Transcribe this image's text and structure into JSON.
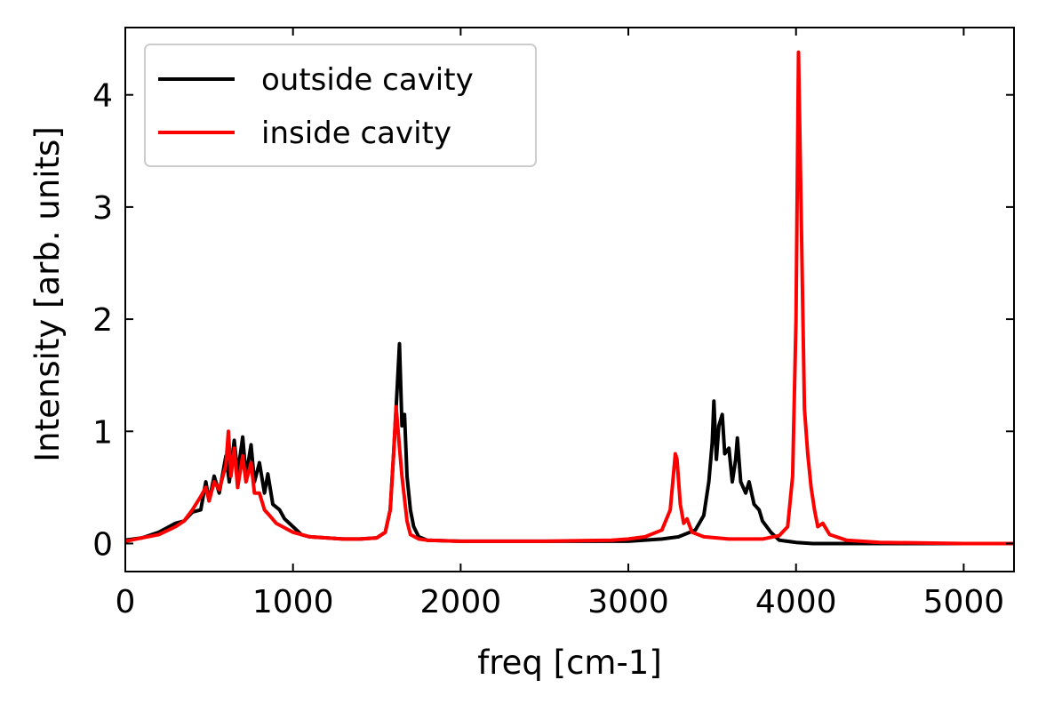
{
  "chart_data": {
    "type": "line",
    "title": "",
    "xlabel": "freq [cm-1]",
    "ylabel": "Intensity [arb. units]",
    "xlim": [
      0,
      5300
    ],
    "ylim": [
      -0.25,
      4.6
    ],
    "xticks": [
      0,
      1000,
      2000,
      3000,
      4000,
      5000
    ],
    "xtick_labels": [
      "0",
      "1000",
      "2000",
      "3000",
      "4000",
      "5000"
    ],
    "yticks": [
      0,
      1,
      2,
      3,
      4
    ],
    "ytick_labels": [
      "0",
      "1",
      "2",
      "3",
      "4"
    ],
    "grid": false,
    "legend_placement": "top-left",
    "series": [
      {
        "name": "outside cavity",
        "color": "#000000",
        "points": [
          [
            0,
            0.03
          ],
          [
            100,
            0.05
          ],
          [
            200,
            0.1
          ],
          [
            300,
            0.18
          ],
          [
            350,
            0.2
          ],
          [
            400,
            0.28
          ],
          [
            450,
            0.3
          ],
          [
            480,
            0.55
          ],
          [
            500,
            0.38
          ],
          [
            530,
            0.6
          ],
          [
            560,
            0.45
          ],
          [
            600,
            0.78
          ],
          [
            620,
            0.55
          ],
          [
            650,
            0.92
          ],
          [
            670,
            0.62
          ],
          [
            700,
            0.95
          ],
          [
            720,
            0.6
          ],
          [
            750,
            0.88
          ],
          [
            770,
            0.55
          ],
          [
            800,
            0.72
          ],
          [
            830,
            0.45
          ],
          [
            850,
            0.62
          ],
          [
            880,
            0.35
          ],
          [
            920,
            0.3
          ],
          [
            950,
            0.22
          ],
          [
            1000,
            0.15
          ],
          [
            1050,
            0.08
          ],
          [
            1100,
            0.06
          ],
          [
            1200,
            0.05
          ],
          [
            1300,
            0.04
          ],
          [
            1400,
            0.04
          ],
          [
            1500,
            0.05
          ],
          [
            1550,
            0.1
          ],
          [
            1580,
            0.3
          ],
          [
            1600,
            0.8
          ],
          [
            1620,
            1.35
          ],
          [
            1635,
            1.78
          ],
          [
            1650,
            1.05
          ],
          [
            1665,
            1.15
          ],
          [
            1680,
            0.6
          ],
          [
            1700,
            0.3
          ],
          [
            1720,
            0.15
          ],
          [
            1750,
            0.06
          ],
          [
            1800,
            0.03
          ],
          [
            2000,
            0.02
          ],
          [
            2500,
            0.02
          ],
          [
            3000,
            0.02
          ],
          [
            3200,
            0.04
          ],
          [
            3300,
            0.06
          ],
          [
            3400,
            0.12
          ],
          [
            3450,
            0.25
          ],
          [
            3480,
            0.55
          ],
          [
            3500,
            0.9
          ],
          [
            3510,
            1.27
          ],
          [
            3525,
            0.75
          ],
          [
            3540,
            1.05
          ],
          [
            3560,
            1.15
          ],
          [
            3575,
            0.8
          ],
          [
            3600,
            0.85
          ],
          [
            3620,
            0.55
          ],
          [
            3640,
            0.75
          ],
          [
            3650,
            0.94
          ],
          [
            3670,
            0.55
          ],
          [
            3700,
            0.45
          ],
          [
            3720,
            0.55
          ],
          [
            3750,
            0.35
          ],
          [
            3780,
            0.3
          ],
          [
            3800,
            0.2
          ],
          [
            3850,
            0.1
          ],
          [
            3900,
            0.03
          ],
          [
            4000,
            0.01
          ],
          [
            4100,
            0.0
          ],
          [
            4500,
            0.0
          ],
          [
            5000,
            0.0
          ],
          [
            5300,
            0.0
          ]
        ]
      },
      {
        "name": "inside cavity",
        "color": "#ff0000",
        "points": [
          [
            0,
            0.02
          ],
          [
            100,
            0.05
          ],
          [
            200,
            0.08
          ],
          [
            300,
            0.15
          ],
          [
            350,
            0.2
          ],
          [
            400,
            0.3
          ],
          [
            450,
            0.42
          ],
          [
            480,
            0.5
          ],
          [
            500,
            0.38
          ],
          [
            530,
            0.55
          ],
          [
            560,
            0.48
          ],
          [
            600,
            0.7
          ],
          [
            615,
            1.0
          ],
          [
            630,
            0.6
          ],
          [
            650,
            0.85
          ],
          [
            670,
            0.5
          ],
          [
            700,
            0.78
          ],
          [
            720,
            0.55
          ],
          [
            750,
            0.72
          ],
          [
            770,
            0.45
          ],
          [
            800,
            0.45
          ],
          [
            830,
            0.3
          ],
          [
            860,
            0.25
          ],
          [
            900,
            0.18
          ],
          [
            950,
            0.14
          ],
          [
            1000,
            0.1
          ],
          [
            1100,
            0.06
          ],
          [
            1200,
            0.05
          ],
          [
            1300,
            0.04
          ],
          [
            1400,
            0.04
          ],
          [
            1500,
            0.05
          ],
          [
            1550,
            0.1
          ],
          [
            1580,
            0.3
          ],
          [
            1600,
            0.8
          ],
          [
            1615,
            1.22
          ],
          [
            1630,
            0.95
          ],
          [
            1650,
            0.6
          ],
          [
            1680,
            0.2
          ],
          [
            1700,
            0.08
          ],
          [
            1750,
            0.04
          ],
          [
            1800,
            0.03
          ],
          [
            2000,
            0.02
          ],
          [
            2500,
            0.02
          ],
          [
            2900,
            0.03
          ],
          [
            3000,
            0.04
          ],
          [
            3100,
            0.06
          ],
          [
            3200,
            0.12
          ],
          [
            3250,
            0.3
          ],
          [
            3280,
            0.8
          ],
          [
            3290,
            0.75
          ],
          [
            3310,
            0.35
          ],
          [
            3330,
            0.18
          ],
          [
            3350,
            0.22
          ],
          [
            3380,
            0.1
          ],
          [
            3450,
            0.06
          ],
          [
            3600,
            0.04
          ],
          [
            3800,
            0.04
          ],
          [
            3900,
            0.07
          ],
          [
            3950,
            0.15
          ],
          [
            3980,
            0.6
          ],
          [
            4000,
            2.0
          ],
          [
            4015,
            4.38
          ],
          [
            4030,
            3.0
          ],
          [
            4050,
            1.2
          ],
          [
            4070,
            0.8
          ],
          [
            4090,
            0.5
          ],
          [
            4110,
            0.3
          ],
          [
            4130,
            0.15
          ],
          [
            4160,
            0.18
          ],
          [
            4200,
            0.08
          ],
          [
            4300,
            0.03
          ],
          [
            4500,
            0.01
          ],
          [
            5000,
            0.0
          ],
          [
            5300,
            0.0
          ]
        ]
      }
    ]
  }
}
